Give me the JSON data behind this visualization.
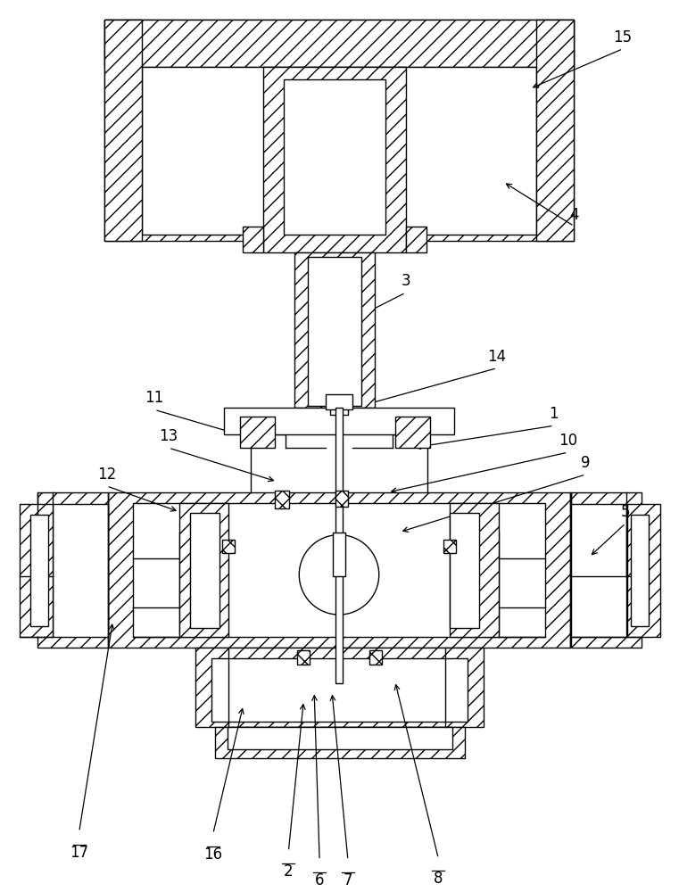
{
  "background_color": "#ffffff",
  "line_color": "#000000",
  "figure_width": 7.61,
  "figure_height": 10.0,
  "annotations": [
    [
      "15",
      700,
      55,
      595,
      100,
      false
    ],
    [
      "4",
      645,
      255,
      565,
      205,
      false
    ],
    [
      "3",
      455,
      330,
      392,
      362,
      false
    ],
    [
      "14",
      558,
      415,
      403,
      458,
      false
    ],
    [
      "11",
      172,
      462,
      295,
      498,
      false
    ],
    [
      "13",
      188,
      505,
      310,
      543,
      false
    ],
    [
      "12",
      118,
      548,
      200,
      577,
      false
    ],
    [
      "1",
      622,
      480,
      462,
      505,
      false
    ],
    [
      "10",
      638,
      510,
      435,
      555,
      false
    ],
    [
      "9",
      658,
      535,
      448,
      600,
      false
    ],
    [
      "5",
      703,
      590,
      662,
      628,
      false
    ],
    [
      "2",
      323,
      960,
      340,
      790,
      true
    ],
    [
      "16",
      238,
      940,
      272,
      795,
      true
    ],
    [
      "6",
      358,
      970,
      352,
      780,
      true
    ],
    [
      "7",
      390,
      970,
      372,
      780,
      true
    ],
    [
      "8",
      492,
      968,
      443,
      768,
      true
    ],
    [
      "17",
      87,
      938,
      125,
      700,
      true
    ]
  ]
}
